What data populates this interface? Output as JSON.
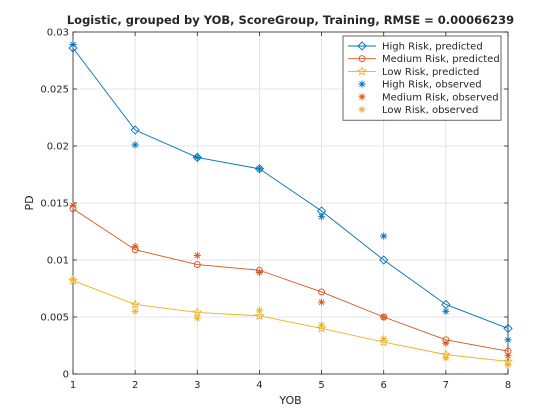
{
  "chart_data": {
    "type": "line",
    "title": "Logistic, grouped by YOB, ScoreGroup, Training, RMSE = 0.00066239",
    "xlabel": "YOB",
    "ylabel": "PD",
    "xlim": [
      1,
      8
    ],
    "ylim": [
      0,
      0.03
    ],
    "x_ticks": [
      "1",
      "2",
      "3",
      "4",
      "5",
      "6",
      "7",
      "8"
    ],
    "y_ticks": [
      "0",
      "0.005",
      "0.01",
      "0.015",
      "0.02",
      "0.025",
      "0.03"
    ],
    "grid": true,
    "legend_position": "top-right",
    "x": [
      1,
      2,
      3,
      4,
      5,
      6,
      7,
      8
    ],
    "series": [
      {
        "name": "High Risk, predicted",
        "kind": "line",
        "marker": "diamond",
        "color": "#0072BD",
        "values": [
          0.0286,
          0.0214,
          0.019,
          0.018,
          0.0143,
          0.01,
          0.0061,
          0.004
        ]
      },
      {
        "name": "Medium Risk, predicted",
        "kind": "line",
        "marker": "circle",
        "color": "#D95319",
        "values": [
          0.0145,
          0.0109,
          0.0096,
          0.0091,
          0.0072,
          0.005,
          0.003,
          0.002
        ]
      },
      {
        "name": "Low Risk, predicted",
        "kind": "line",
        "marker": "pentagram",
        "color": "#EDB120",
        "values": [
          0.0082,
          0.0061,
          0.0054,
          0.0051,
          0.004,
          0.0028,
          0.0017,
          0.0011
        ]
      },
      {
        "name": "High Risk, observed",
        "kind": "scatter",
        "marker": "asterisk",
        "color": "#0072BD",
        "values": [
          0.0289,
          0.0201,
          0.019,
          0.018,
          0.0138,
          0.0121,
          0.0055,
          0.003
        ]
      },
      {
        "name": "Medium Risk, observed",
        "kind": "scatter",
        "marker": "asterisk",
        "color": "#D95319",
        "values": [
          0.0148,
          0.0112,
          0.0104,
          0.0089,
          0.0063,
          0.005,
          0.0027,
          0.0016
        ]
      },
      {
        "name": "Low Risk, observed",
        "kind": "scatter",
        "marker": "asterisk",
        "color": "#EDB120",
        "values": [
          0.0083,
          0.0055,
          0.0049,
          0.0056,
          0.0043,
          0.0031,
          0.0014,
          0.0008
        ]
      }
    ]
  }
}
